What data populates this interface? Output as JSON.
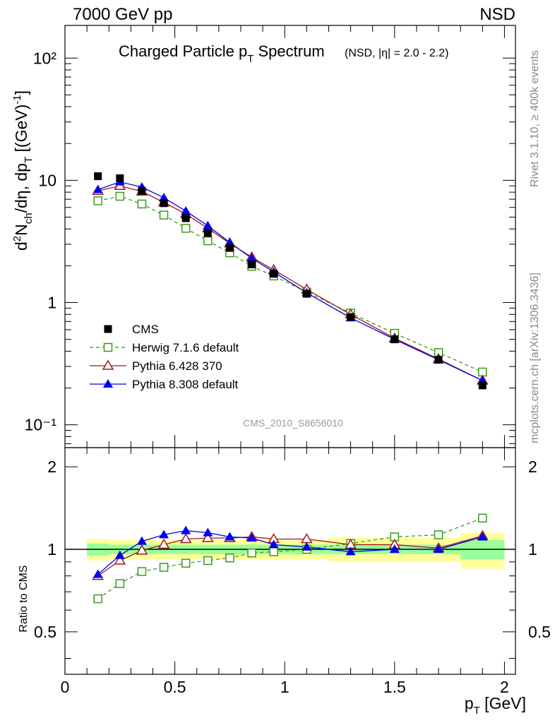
{
  "header": {
    "left": "7000 GeV pp",
    "right": "NSD"
  },
  "side_labels": {
    "rivet": "Rivet 3.1.10, ≥ 400k events",
    "mcplots": "mcplots.cern.ch [arXiv:1306.3436]"
  },
  "watermark": "CMS_2010_S8656010",
  "chart_data": {
    "type": "line",
    "title": {
      "main": "Charged Particle p",
      "main_sub": "T",
      "main_after": " Spectrum",
      "small": "(NSD, |η| = 2.0 - 2.2)"
    },
    "xlabel": {
      "text": "p",
      "sub": "T",
      "after": " [GeV]"
    },
    "ylabel": "d²N_ch/dη dp_T [(GeV)⁻¹]",
    "ratio_ylabel": "Ratio to CMS",
    "xlim": [
      0,
      2.05
    ],
    "ylim": [
      0.065,
      185
    ],
    "yscale": "log",
    "ratio_ylim": [
      0.35,
      2.35
    ],
    "ratio_yscale": "log",
    "x_ticks": [
      "0",
      "0.5",
      "1",
      "1.5",
      "2"
    ],
    "y_ticks": [
      "10⁻¹",
      "1",
      "10",
      "10²"
    ],
    "ratio_ticks": [
      "0.5",
      "1",
      "2"
    ],
    "legend": [
      {
        "label": "CMS",
        "key": "cms"
      },
      {
        "label": "Herwig 7.1.6 default",
        "key": "herwig"
      },
      {
        "label": "Pythia 6.428 370",
        "key": "py6"
      },
      {
        "label": "Pythia 8.308 default",
        "key": "py8"
      }
    ],
    "colors": {
      "cms": "#000000",
      "herwig": "#3a9a1a",
      "py6": "#a0141e",
      "py8": "#0000ee",
      "band_outer": "#ffff99",
      "band_inner": "#99ff99"
    },
    "x": [
      0.15,
      0.25,
      0.35,
      0.45,
      0.55,
      0.65,
      0.75,
      0.85,
      0.95,
      1.1,
      1.3,
      1.5,
      1.7,
      1.9
    ],
    "x_edges": [
      0.1,
      0.2,
      0.3,
      0.4,
      0.5,
      0.6,
      0.7,
      0.8,
      0.9,
      1.0,
      1.2,
      1.4,
      1.6,
      1.8,
      2.0
    ],
    "series": [
      {
        "name": "CMS",
        "key": "cms",
        "values": [
          10.8,
          10.4,
          8.2,
          6.5,
          4.9,
          3.7,
          2.8,
          2.05,
          1.72,
          1.18,
          0.76,
          0.5,
          0.34,
          0.21
        ]
      },
      {
        "name": "Herwig 7.1.6 default",
        "key": "herwig",
        "values": [
          6.8,
          7.4,
          6.4,
          5.2,
          4.05,
          3.2,
          2.55,
          1.98,
          1.65,
          1.22,
          0.82,
          0.56,
          0.39,
          0.27
        ]
      },
      {
        "name": "Pythia 6.428 370",
        "key": "py6",
        "values": [
          8.2,
          9.0,
          8.1,
          6.6,
          5.3,
          4.05,
          3.05,
          2.35,
          1.85,
          1.28,
          0.8,
          0.51,
          0.345,
          0.23
        ]
      },
      {
        "name": "Pythia 8.308 default",
        "key": "py8",
        "values": [
          8.4,
          9.7,
          8.8,
          7.2,
          5.6,
          4.25,
          3.1,
          2.3,
          1.78,
          1.2,
          0.75,
          0.5,
          0.34,
          0.23
        ]
      }
    ],
    "ratio_series": [
      {
        "key": "herwig",
        "values": [
          0.66,
          0.75,
          0.83,
          0.86,
          0.89,
          0.91,
          0.93,
          0.97,
          0.98,
          1.0,
          1.05,
          1.11,
          1.13,
          1.3
        ]
      },
      {
        "key": "py6",
        "values": [
          0.8,
          0.91,
          0.99,
          1.04,
          1.09,
          1.1,
          1.1,
          1.11,
          1.09,
          1.09,
          1.04,
          1.04,
          1.01,
          1.12
        ]
      },
      {
        "key": "py8",
        "values": [
          0.81,
          0.95,
          1.07,
          1.13,
          1.17,
          1.15,
          1.11,
          1.1,
          1.04,
          1.02,
          0.98,
          1.0,
          1.0,
          1.11
        ]
      }
    ],
    "band_inner": [
      0.05,
      0.04,
      0.04,
      0.04,
      0.04,
      0.04,
      0.04,
      0.04,
      0.04,
      0.04,
      0.04,
      0.04,
      0.04,
      0.08
    ],
    "band_outer": [
      0.09,
      0.08,
      0.08,
      0.08,
      0.08,
      0.08,
      0.08,
      0.08,
      0.08,
      0.08,
      0.1,
      0.1,
      0.1,
      0.15
    ]
  }
}
